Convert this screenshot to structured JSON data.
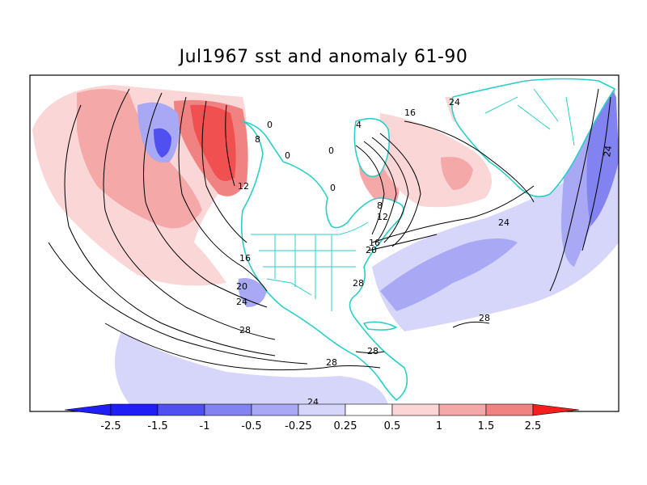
{
  "title": "Jul1967 sst and anomaly 61-90",
  "colors": {
    "neg_strong": "#1e1ef5",
    "neg_3": "#5050f0",
    "neg_2": "#8282f0",
    "neg_1": "#a8a8f5",
    "neg_0": "#d6d6fa",
    "neutral": "#ffffff",
    "pos_0": "#fad6d6",
    "pos_1": "#f5a8a8",
    "pos_2": "#f08282",
    "pos_3": "#f05050",
    "pos_strong": "#f51e1e",
    "coastline": "#2ad0c8",
    "contour": "#000000"
  },
  "colorbar": {
    "labels": [
      "-2.5",
      "-1.5",
      "-1",
      "-0.5",
      "-0.25",
      "0.25",
      "0.5",
      "1",
      "1.5",
      "2.5"
    ]
  },
  "contour_labels": [
    "24",
    "16",
    "8",
    "0",
    "12",
    "0",
    "8",
    "12",
    "16",
    "20",
    "24",
    "16",
    "20",
    "24",
    "28",
    "28",
    "28",
    "28",
    "24",
    "24",
    "0",
    "4",
    "0"
  ]
}
